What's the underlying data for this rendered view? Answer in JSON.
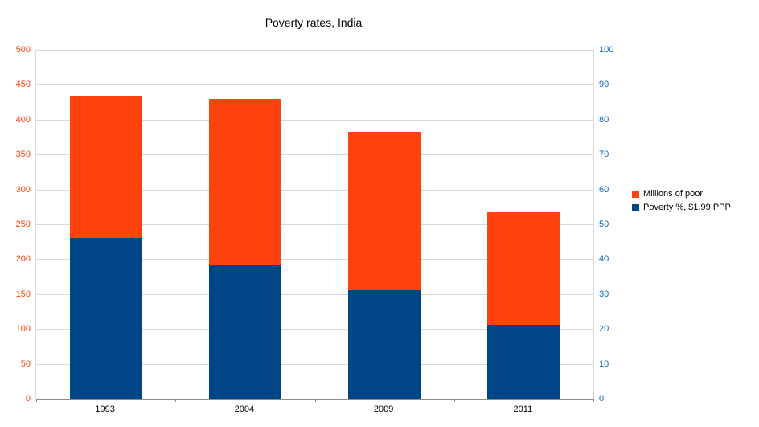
{
  "chart_data": {
    "type": "bar",
    "stacked": true,
    "title": "Poverty rates, India",
    "categories": [
      "1993",
      "2004",
      "2009",
      "2011"
    ],
    "series": [
      {
        "name": "Poverty %, $1.99 PPP",
        "axis": "right",
        "color": "#004586",
        "values": [
          46,
          38.2,
          31.1,
          21.2
        ]
      },
      {
        "name": "Millions of poor",
        "axis": "left",
        "color": "#ff420e",
        "stack_top_values": [
          433,
          430,
          383,
          267
        ]
      }
    ],
    "left_axis": {
      "min": 0,
      "max": 500,
      "step": 50,
      "tick_labels": [
        "0",
        "50",
        "100",
        "150",
        "200",
        "250",
        "300",
        "350",
        "400",
        "450",
        "500"
      ],
      "label_color": "#ff420e"
    },
    "right_axis": {
      "min": 0,
      "max": 100,
      "step": 10,
      "tick_labels": [
        "0",
        "10",
        "20",
        "30",
        "40",
        "50",
        "60",
        "70",
        "80",
        "90",
        "100"
      ],
      "label_color": "#0066cc"
    },
    "legend": {
      "position": "right",
      "entries": [
        {
          "label": "Millions of poor",
          "color": "#ff420e"
        },
        {
          "label": "Poverty %, $1.99 PPP",
          "color": "#004586"
        }
      ]
    },
    "grid": true,
    "gridline_color": "#d9d9d9"
  }
}
